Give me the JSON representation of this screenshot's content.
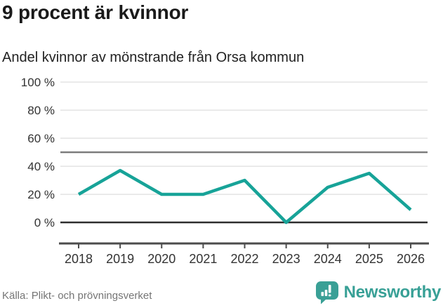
{
  "header": {
    "title": "9 procent är kvinnor",
    "subtitle": "Andel kvinnor av mönstrande från Orsa kommun"
  },
  "footer": {
    "source": "Källa: Plikt- och prövningsverket",
    "brand": "Newsworthy"
  },
  "chart_data": {
    "type": "line",
    "title": "9 procent är kvinnor",
    "subtitle": "Andel kvinnor av mönstrande från Orsa kommun",
    "x": [
      "2018",
      "2019",
      "2020",
      "2021",
      "2022",
      "2023",
      "2024",
      "2025",
      "2026"
    ],
    "values": [
      20,
      37,
      20,
      20,
      30,
      0,
      25,
      35,
      9
    ],
    "unit": "%",
    "ytick_suffix": " %",
    "ylim": [
      0,
      100
    ],
    "yticks": [
      0,
      20,
      40,
      60,
      80,
      100
    ],
    "reference_line": 50,
    "grid": true,
    "legend": "none",
    "xlabel": "",
    "ylabel": "",
    "colors": {
      "line": "#17a398",
      "grid": "#e3e3e3",
      "reference": "#7c7c7c",
      "zero_line": "#2e2e2e",
      "axis": "#4c4c4c",
      "tick_text": "#333333"
    }
  },
  "logo_colors": {
    "bubble": "#3aa096",
    "glyph": "#ffffff"
  }
}
